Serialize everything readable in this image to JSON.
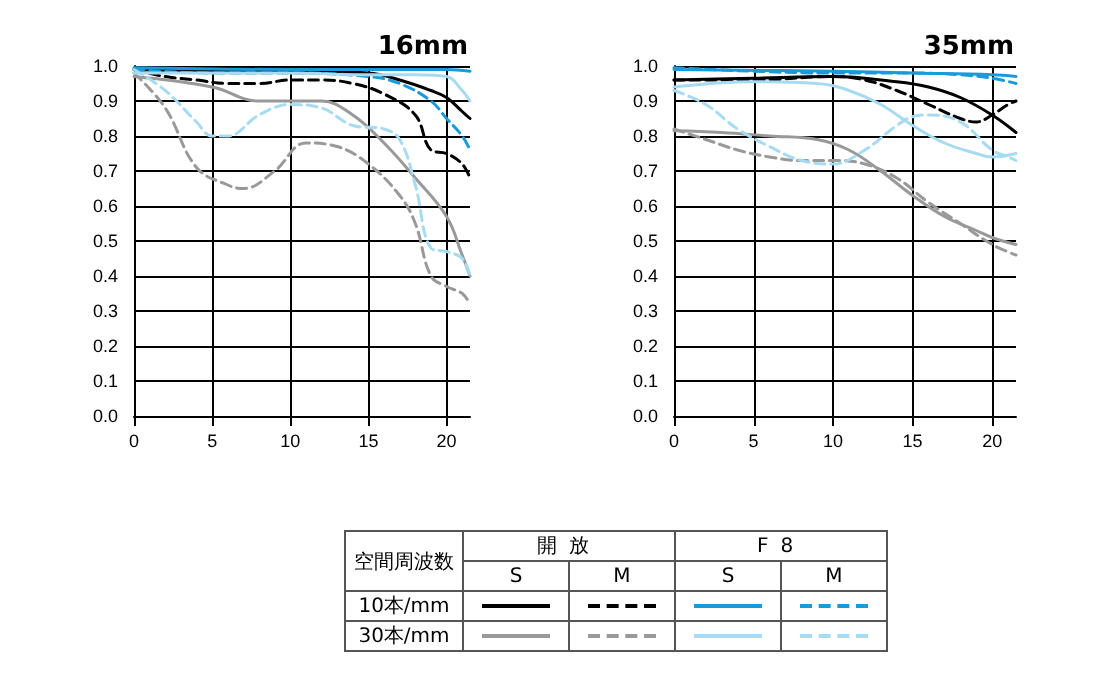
{
  "chart_data": [
    {
      "type": "line",
      "title": "16mm",
      "xlim": [
        0,
        21.5
      ],
      "xticks": [
        0,
        5,
        10,
        15,
        20
      ],
      "ylim": [
        0,
        1
      ],
      "yticks": [
        {
          "value": 0,
          "label": "0.0"
        },
        {
          "value": 0.1,
          "label": "0.1"
        },
        {
          "value": 0.2,
          "label": "0.2"
        },
        {
          "value": 0.3,
          "label": "0.3"
        },
        {
          "value": 0.4,
          "label": "0.4"
        },
        {
          "value": 0.5,
          "label": "0.5"
        },
        {
          "value": 0.6,
          "label": "0.6"
        },
        {
          "value": 0.7,
          "label": "0.7"
        },
        {
          "value": 0.8,
          "label": "0.8"
        },
        {
          "value": 0.9,
          "label": "0.9"
        },
        {
          "value": 1,
          "label": "1.0"
        }
      ],
      "grid": true,
      "marker": "none",
      "series": [
        {
          "color": "#000000",
          "line_style": "solid",
          "x": [
            0,
            5,
            10,
            15,
            17,
            19,
            20,
            21,
            21.5
          ],
          "values": [
            0.99,
            0.985,
            0.985,
            0.98,
            0.96,
            0.93,
            0.91,
            0.87,
            0.85
          ]
        },
        {
          "color": "#000000",
          "line_style": "dashed",
          "x": [
            0,
            2,
            4,
            6,
            8,
            10,
            12,
            14,
            16,
            18,
            19,
            20,
            21,
            21.5
          ],
          "values": [
            0.99,
            0.97,
            0.96,
            0.95,
            0.95,
            0.96,
            0.96,
            0.95,
            0.92,
            0.86,
            0.76,
            0.75,
            0.72,
            0.68
          ]
        },
        {
          "color": "#999999",
          "line_style": "solid",
          "x": [
            0,
            5,
            8,
            12,
            14,
            16,
            18,
            20,
            21,
            21.5
          ],
          "values": [
            0.97,
            0.94,
            0.9,
            0.9,
            0.86,
            0.78,
            0.68,
            0.57,
            0.46,
            0.4
          ]
        },
        {
          "color": "#999999",
          "line_style": "dashed",
          "x": [
            0,
            2,
            4,
            6,
            7,
            9,
            11,
            13,
            15,
            17,
            18,
            19,
            20,
            21,
            21.5
          ],
          "values": [
            0.98,
            0.88,
            0.71,
            0.66,
            0.65,
            0.7,
            0.78,
            0.77,
            0.72,
            0.63,
            0.55,
            0.4,
            0.37,
            0.35,
            0.32
          ]
        },
        {
          "color": "#1a9bd7",
          "line_style": "solid",
          "x": [
            0,
            10,
            15,
            20,
            21.5
          ],
          "values": [
            0.995,
            0.99,
            0.99,
            0.99,
            0.985
          ]
        },
        {
          "color": "#1a9bd7",
          "line_style": "dashed",
          "x": [
            0,
            5,
            10,
            15,
            17,
            19,
            20,
            21,
            21.5
          ],
          "values": [
            0.99,
            0.98,
            0.98,
            0.97,
            0.95,
            0.9,
            0.85,
            0.8,
            0.76
          ]
        },
        {
          "color": "#a6dbf2",
          "line_style": "solid",
          "x": [
            0,
            5,
            10,
            15,
            18,
            20,
            21,
            21.5
          ],
          "values": [
            0.98,
            0.98,
            0.98,
            0.975,
            0.975,
            0.97,
            0.93,
            0.9
          ]
        },
        {
          "color": "#a6dbf2",
          "line_style": "dashed",
          "x": [
            0,
            2,
            4,
            5,
            6,
            8,
            10,
            12,
            14,
            16,
            17,
            18,
            19,
            20,
            21,
            21.5
          ],
          "values": [
            0.99,
            0.93,
            0.84,
            0.8,
            0.8,
            0.86,
            0.89,
            0.88,
            0.83,
            0.82,
            0.79,
            0.66,
            0.48,
            0.47,
            0.45,
            0.4
          ]
        }
      ]
    },
    {
      "type": "line",
      "title": "35mm",
      "xlim": [
        0,
        21.5
      ],
      "xticks": [
        0,
        5,
        10,
        15,
        20
      ],
      "ylim": [
        0,
        1
      ],
      "yticks": [
        {
          "value": 0,
          "label": "0.0"
        },
        {
          "value": 0.1,
          "label": "0.1"
        },
        {
          "value": 0.2,
          "label": "0.2"
        },
        {
          "value": 0.3,
          "label": "0.3"
        },
        {
          "value": 0.4,
          "label": "0.4"
        },
        {
          "value": 0.5,
          "label": "0.5"
        },
        {
          "value": 0.6,
          "label": "0.6"
        },
        {
          "value": 0.7,
          "label": "0.7"
        },
        {
          "value": 0.8,
          "label": "0.8"
        },
        {
          "value": 0.9,
          "label": "0.9"
        },
        {
          "value": 1,
          "label": "1.0"
        }
      ],
      "grid": true,
      "marker": "none",
      "series": [
        {
          "color": "#000000",
          "line_style": "solid",
          "x": [
            0,
            5,
            10,
            14,
            16,
            18,
            20,
            21.5
          ],
          "values": [
            0.96,
            0.965,
            0.97,
            0.955,
            0.94,
            0.91,
            0.86,
            0.81
          ]
        },
        {
          "color": "#000000",
          "line_style": "dashed",
          "x": [
            0,
            5,
            10,
            12,
            14,
            16,
            18,
            19,
            20,
            21,
            21.5
          ],
          "values": [
            0.96,
            0.96,
            0.97,
            0.96,
            0.93,
            0.89,
            0.85,
            0.84,
            0.86,
            0.89,
            0.9
          ]
        },
        {
          "color": "#999999",
          "line_style": "solid",
          "x": [
            0,
            3,
            6,
            9,
            11,
            13,
            15,
            17,
            19,
            20,
            21.5
          ],
          "values": [
            0.815,
            0.81,
            0.8,
            0.79,
            0.76,
            0.7,
            0.63,
            0.57,
            0.53,
            0.51,
            0.49
          ]
        },
        {
          "color": "#999999",
          "line_style": "dashed",
          "x": [
            0,
            2,
            4,
            6,
            8,
            10,
            12,
            14,
            16,
            18,
            20,
            21.5
          ],
          "values": [
            0.82,
            0.79,
            0.76,
            0.74,
            0.73,
            0.73,
            0.72,
            0.68,
            0.61,
            0.55,
            0.49,
            0.46
          ]
        },
        {
          "color": "#1a9bd7",
          "line_style": "solid",
          "x": [
            0,
            10,
            15,
            20,
            21.5
          ],
          "values": [
            0.99,
            0.985,
            0.98,
            0.975,
            0.97
          ]
        },
        {
          "color": "#1a9bd7",
          "line_style": "dashed",
          "x": [
            0,
            5,
            10,
            15,
            18,
            20,
            21.5
          ],
          "values": [
            0.995,
            0.985,
            0.98,
            0.98,
            0.975,
            0.965,
            0.95
          ]
        },
        {
          "color": "#a6dbf2",
          "line_style": "solid",
          "x": [
            0,
            5,
            9,
            11,
            13,
            15,
            17,
            19,
            20,
            21.5
          ],
          "values": [
            0.94,
            0.955,
            0.95,
            0.93,
            0.89,
            0.83,
            0.78,
            0.75,
            0.74,
            0.75
          ]
        },
        {
          "color": "#a6dbf2",
          "line_style": "dashed",
          "x": [
            0,
            2,
            4,
            6,
            8,
            10,
            12,
            14,
            15,
            16,
            18,
            20,
            21,
            21.5
          ],
          "values": [
            0.93,
            0.89,
            0.82,
            0.77,
            0.73,
            0.72,
            0.76,
            0.83,
            0.855,
            0.86,
            0.84,
            0.76,
            0.74,
            0.73
          ]
        }
      ]
    },
    {
      "type": "other",
      "annotations": [
        "空間周波数",
        "開放",
        "F8",
        "S",
        "M",
        "S",
        "M",
        "10本/mm",
        "30本/mm"
      ]
    }
  ]
}
